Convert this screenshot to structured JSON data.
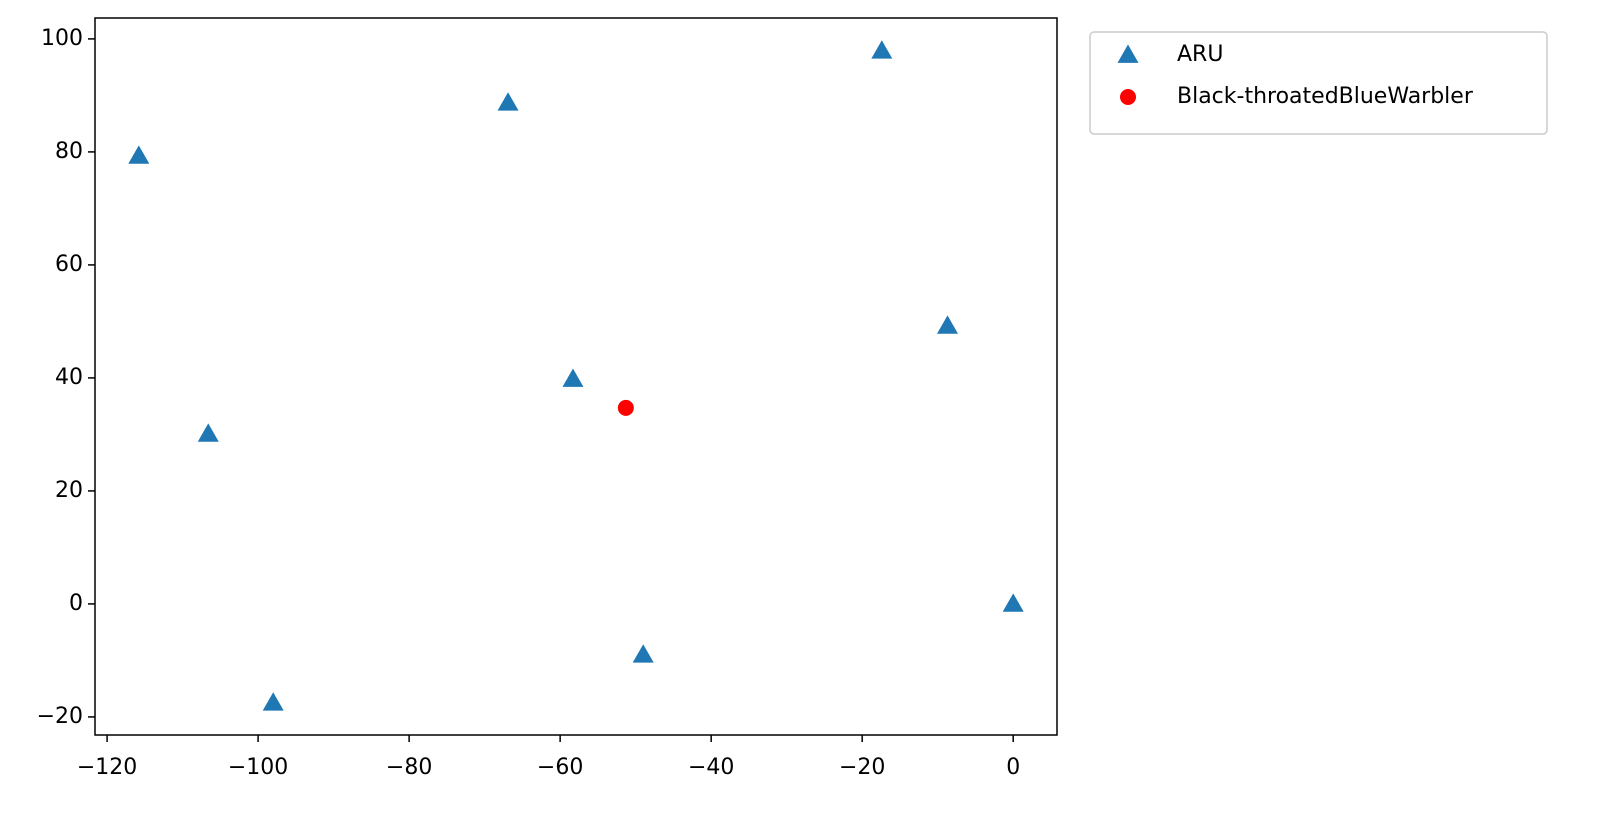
{
  "chart_data": {
    "type": "scatter",
    "series": [
      {
        "name": "ARU",
        "color": "#1f77b4",
        "marker": "triangle",
        "x": [
          -115.8,
          -66.9,
          -17.4,
          -8.7,
          -58.3,
          -106.6,
          0,
          -49.0,
          -98.0
        ],
        "y": [
          79.3,
          88.7,
          97.9,
          49.2,
          39.8,
          30.1,
          0,
          -9.0,
          -17.5
        ]
      },
      {
        "name": "Black-throatedBlueWarbler",
        "color": "#ff0000",
        "marker": "circle",
        "x": [
          -51.3
        ],
        "y": [
          34.7
        ]
      }
    ],
    "xlim": [
      -121.6,
      5.8
    ],
    "ylim": [
      -23.2,
      103.7
    ],
    "xticks": [
      {
        "value": -120,
        "label": "−120"
      },
      {
        "value": -100,
        "label": "−100"
      },
      {
        "value": -80,
        "label": "−80"
      },
      {
        "value": -60,
        "label": "−60"
      },
      {
        "value": -40,
        "label": "−40"
      },
      {
        "value": -20,
        "label": "−20"
      },
      0
    ],
    "yticks": [
      {
        "value": -20,
        "label": "−20"
      },
      0,
      20,
      40,
      60,
      80,
      100
    ],
    "grid": false,
    "legend": "outside-right"
  }
}
